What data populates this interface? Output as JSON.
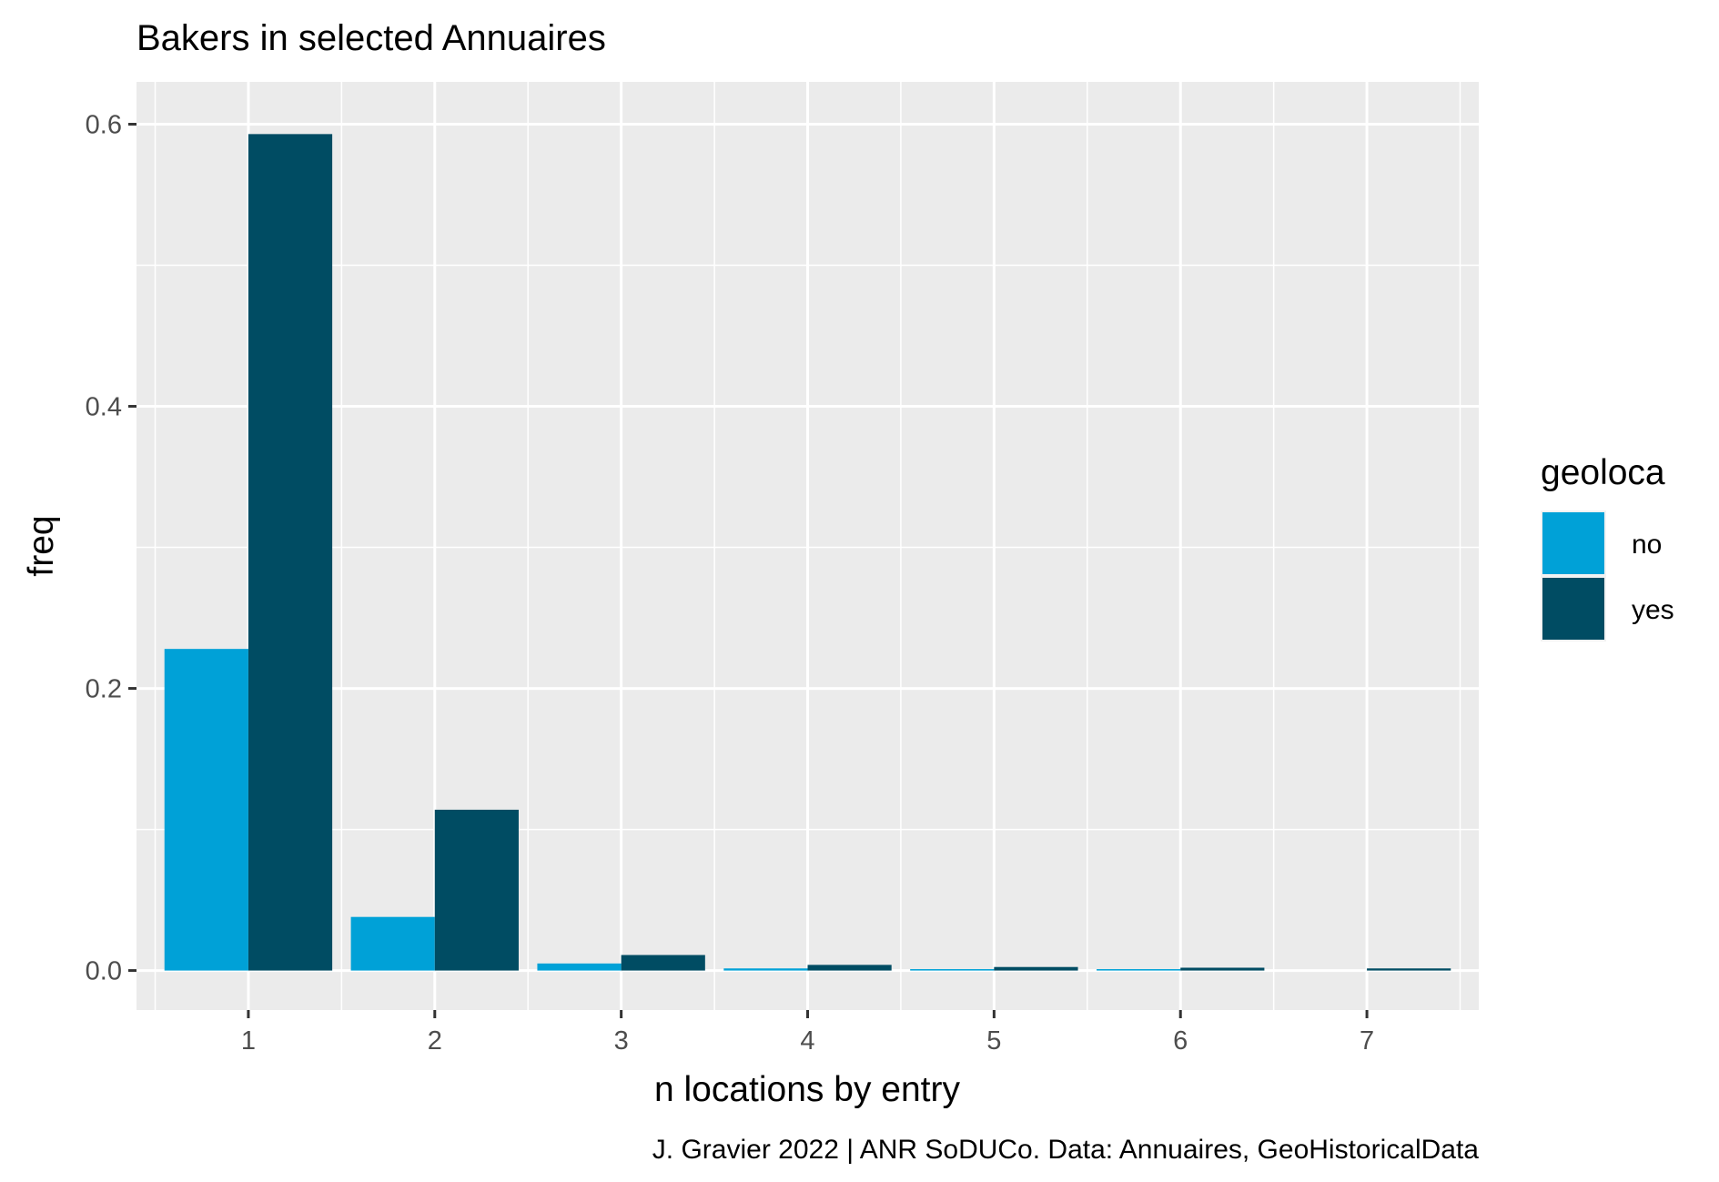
{
  "chart_data": {
    "type": "bar",
    "title": "Bakers in selected Annuaires",
    "xlabel": "n locations by entry",
    "ylabel": "freq",
    "caption": "J. Gravier 2022 | ANR SoDUCo. Data: Annuaires, GeoHistoricalData",
    "categories": [
      "1",
      "2",
      "3",
      "4",
      "5",
      "6",
      "7"
    ],
    "series": [
      {
        "name": "no",
        "color": "#00A1D7",
        "values": [
          0.228,
          0.038,
          0.005,
          0.0015,
          0.001,
          0.001,
          0.0
        ]
      },
      {
        "name": "yes",
        "color": "#004C63",
        "values": [
          0.593,
          0.114,
          0.011,
          0.004,
          0.0025,
          0.002,
          0.0015
        ]
      }
    ],
    "ylim": [
      -0.028,
      0.63
    ],
    "yticks": [
      0.0,
      0.2,
      0.4,
      0.6
    ],
    "ytick_labels": [
      "0.0",
      "0.2",
      "0.4",
      "0.6"
    ],
    "grid": true,
    "legend": {
      "title": "geoloca",
      "position": "right"
    },
    "colors": {
      "panel": "#EBEBEB",
      "grid": "#FFFFFF",
      "ticks": "#333333"
    }
  }
}
